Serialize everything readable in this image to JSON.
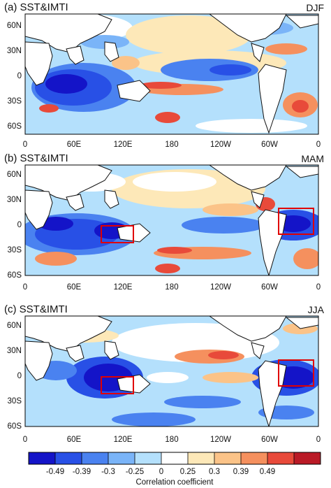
{
  "chart_data": {
    "type": "heatmap",
    "panels": [
      {
        "title": "(a) SST&IMTI",
        "season": "DJF",
        "boxes": []
      },
      {
        "title": "(b) SST&IMTI",
        "season": "MAM",
        "boxes": [
          {
            "lon": [
              90,
              130
            ],
            "lat": [
              -15,
              0
            ]
          },
          {
            "lon": [
              -60,
              -30
            ],
            "lat": [
              -10,
              10
            ]
          }
        ]
      },
      {
        "title": "(c) SST&IMTI",
        "season": "JJA",
        "boxes": [
          {
            "lon": [
              90,
              130
            ],
            "lat": [
              -15,
              0
            ]
          },
          {
            "lon": [
              -60,
              -30
            ],
            "lat": [
              -10,
              10
            ]
          }
        ]
      }
    ],
    "x_ticks": [
      "0",
      "60E",
      "120E",
      "180",
      "120W",
      "60W",
      "0"
    ],
    "y_ticks": [
      "60N",
      "30N",
      "0",
      "30S",
      "60S"
    ],
    "xlim": [
      0,
      360
    ],
    "ylim": [
      -60,
      70
    ],
    "colorbar": {
      "labels": [
        "-0.49",
        "-0.39",
        "-0.3",
        "-0.25",
        "0",
        "0.25",
        "0.3",
        "0.39",
        "0.49"
      ],
      "colors": [
        "#1414c8",
        "#2850e6",
        "#4a82f0",
        "#7ab4f8",
        "#b4e0fc",
        "#ffffff",
        "#fde8b8",
        "#fbc388",
        "#f5905e",
        "#e84a3a",
        "#ba1a26"
      ],
      "title": "Correlation coefficient"
    },
    "box_color": "#e00000"
  }
}
